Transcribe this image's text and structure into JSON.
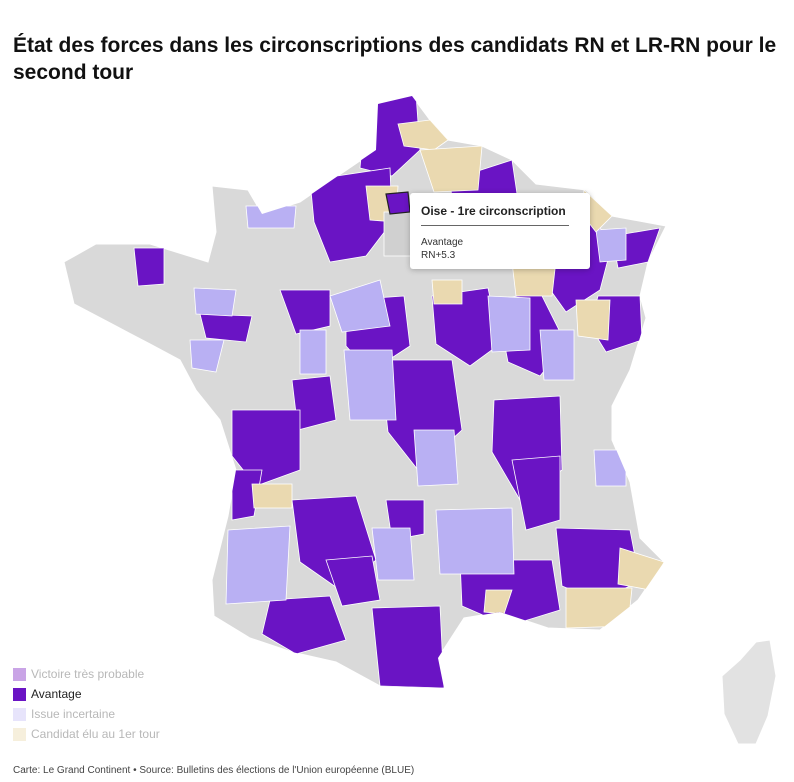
{
  "title": "État des forces dans les circonscriptions des candidats RN et LR-RN pour le second tour",
  "colors": {
    "victoire": "#c9a4e6",
    "avantage": "#6a14c4",
    "incertaine": "#b9b0f3",
    "elu": "#ead9b0",
    "other": "#d9d9d9",
    "corse": "#e2e2e2"
  },
  "legend": [
    {
      "label": "Victoire très probable",
      "key": "victoire",
      "active": false
    },
    {
      "label": "Avantage",
      "key": "avantage",
      "active": true
    },
    {
      "label": "Issue incertaine",
      "key": "incertaine",
      "active": false
    },
    {
      "label": "Candidat élu au 1er tour",
      "key": "elu",
      "active": false
    }
  ],
  "tooltip": {
    "title": "Oise - 1re circonscription",
    "status": "Avantage",
    "value": "RN+5.3"
  },
  "footer": "Carte: Le Grand Continent • Source: Bulletins des élections de l'Union européenne (BLUE)"
}
